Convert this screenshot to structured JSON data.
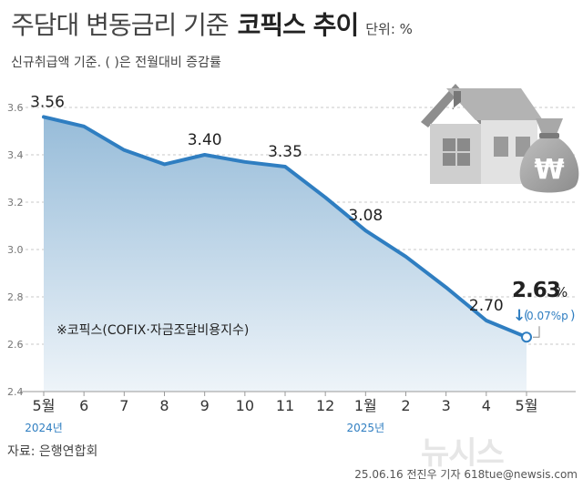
{
  "header": {
    "title_main": "주담대 변동금리 기준",
    "title_bold": "코픽스 추이",
    "unit": "단위: %",
    "subtitle": "신규취급액 기준. ( )은 전월대비 증감률"
  },
  "footer": {
    "source": "자료: 은행연합회",
    "credit": "25.06.16 전진우 기자 618tue@newsis.com",
    "watermark": "뉴시스"
  },
  "icons": [
    "house-icon",
    "money-bag-icon"
  ],
  "colors": {
    "line": "#2f7ec1",
    "area_top": "#9fc2de",
    "area_bottom": "#eef4f9",
    "last_label": "#2f7ec1"
  },
  "chart_data": {
    "type": "area",
    "categories": [
      "5월",
      "6",
      "7",
      "8",
      "9",
      "10",
      "11",
      "12",
      "1월",
      "2",
      "3",
      "4",
      "5월"
    ],
    "year_labels": [
      {
        "label": "2024년",
        "index": 0
      },
      {
        "label": "2025년",
        "index": 8
      }
    ],
    "values": [
      3.56,
      3.52,
      3.42,
      3.36,
      3.4,
      3.37,
      3.35,
      3.22,
      3.08,
      2.97,
      2.84,
      2.7,
      2.63
    ],
    "data_labels": [
      {
        "index": 0,
        "text": "3.56"
      },
      {
        "index": 4,
        "text": "3.40"
      },
      {
        "index": 6,
        "text": "3.35"
      },
      {
        "index": 8,
        "text": "3.08"
      },
      {
        "index": 11,
        "text": "2.70"
      }
    ],
    "last_label": {
      "value": "2.63",
      "suffix": "%",
      "arrow": "↓",
      "change": "0.07%p"
    },
    "yticks": [
      "2.4",
      "2.6",
      "2.8",
      "3.0",
      "3.2",
      "3.4",
      "3.6"
    ],
    "ylim": [
      2.4,
      3.6
    ],
    "grid": true,
    "note": "※코픽스(COFIX·자금조달비용지수)"
  }
}
